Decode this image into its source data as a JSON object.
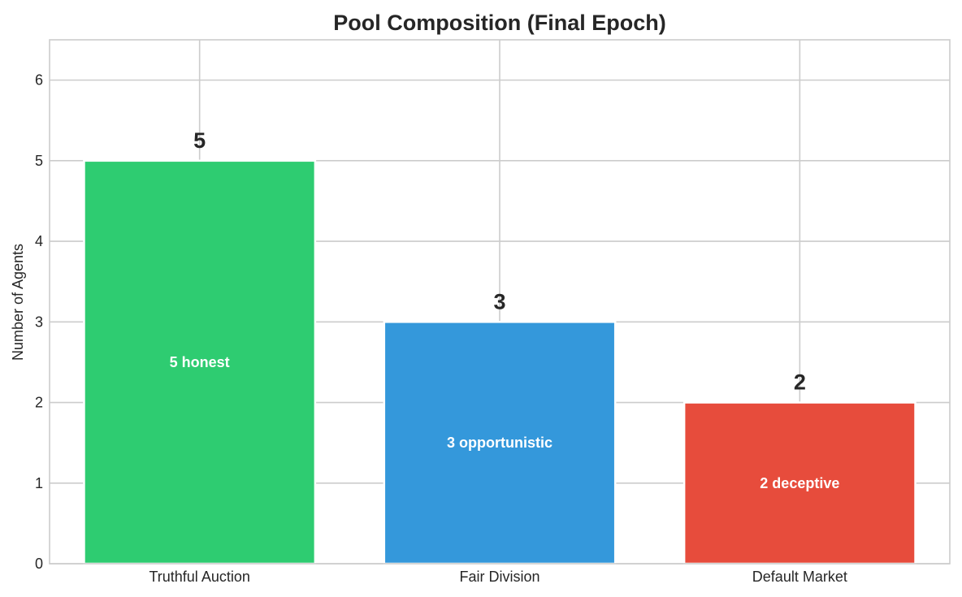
{
  "chart_data": {
    "type": "bar",
    "title": "Pool Composition (Final Epoch)",
    "xlabel": "",
    "ylabel": "Number of Agents",
    "categories": [
      "Truthful Auction",
      "Fair Division",
      "Default Market"
    ],
    "values": [
      5,
      3,
      2
    ],
    "bar_labels": [
      "5",
      "3",
      "2"
    ],
    "inner_labels": [
      "5 honest",
      "3 opportunistic",
      "2 deceptive"
    ],
    "colors": [
      "#2ecc71",
      "#3498db",
      "#e74c3c"
    ],
    "ylim": [
      0,
      6.5
    ],
    "yticks": [
      0,
      1,
      2,
      3,
      4,
      5,
      6
    ],
    "grid": true,
    "legend": "none"
  }
}
